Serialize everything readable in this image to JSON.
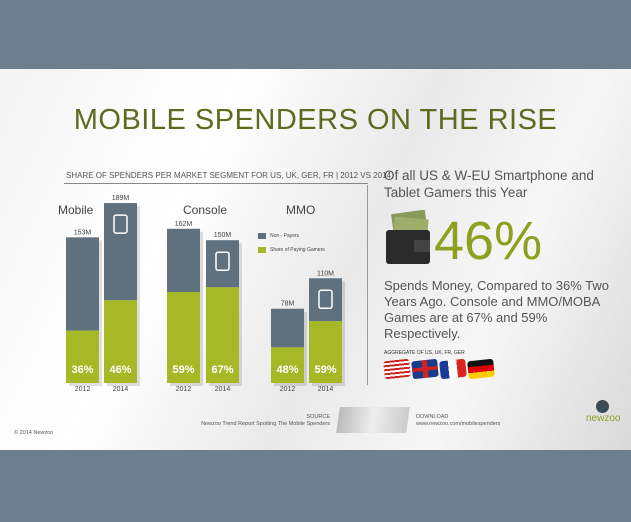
{
  "title": "MOBILE SPENDERS ON THE RISE",
  "colors": {
    "non_payers": "#5f717f",
    "paying": "#a6b826",
    "title": "#5d6b1f"
  },
  "chart_data": {
    "type": "bar",
    "stacked": true,
    "title": "SHARE OF SPENDERS PER MARKET SEGMENT FOR US, UK, GER, FR | 2012 VS 2014",
    "segments": [
      {
        "name": "Mobile",
        "icon": "tablet-phone-icon",
        "bars": [
          {
            "year": "2012",
            "total": 153,
            "total_label": "153M",
            "paying_pct": 36,
            "pct_label": "36%"
          },
          {
            "year": "2014",
            "total": 189,
            "total_label": "189M",
            "paying_pct": 46,
            "pct_label": "46%"
          }
        ]
      },
      {
        "name": "Console",
        "icon": "console-icon",
        "bars": [
          {
            "year": "2012",
            "total": 162,
            "total_label": "162M",
            "paying_pct": 59,
            "pct_label": "59%"
          },
          {
            "year": "2014",
            "total": 150,
            "total_label": "150M",
            "paying_pct": 67,
            "pct_label": "67%"
          }
        ]
      },
      {
        "name": "MMO",
        "icon": "globe-icon",
        "bars": [
          {
            "year": "2012",
            "total": 78,
            "total_label": "78M",
            "paying_pct": 48,
            "pct_label": "48%"
          },
          {
            "year": "2014",
            "total": 110,
            "total_label": "110M",
            "paying_pct": 59,
            "pct_label": "59%"
          }
        ]
      }
    ],
    "legend": [
      {
        "name": "Non - Payers",
        "color": "#5f717f"
      },
      {
        "name": "Share of Paying Gamers",
        "color": "#a6b826"
      }
    ],
    "legend_placement": "top-right"
  },
  "right": {
    "intro": "Of all US & W-EU Smartphone and Tablet Gamers this Year",
    "big": "46%",
    "body": "Spends Money, Compared to 36% Two Years Ago. Console and MMO/MOBA Games are at 67% and 59% Respectively.",
    "aggregate": "AGGREGATE OF US, UK, FR, GER"
  },
  "footer": {
    "copyright": "© 2014 Newzoo",
    "source_label": "SOURCE",
    "source": "Newzoo Trend Report Spotting The Mobile Spenders",
    "download_label": "DOWNLOAD",
    "download_url": "www.newzoo.com/mobilespenders",
    "logo": "newzoo"
  }
}
